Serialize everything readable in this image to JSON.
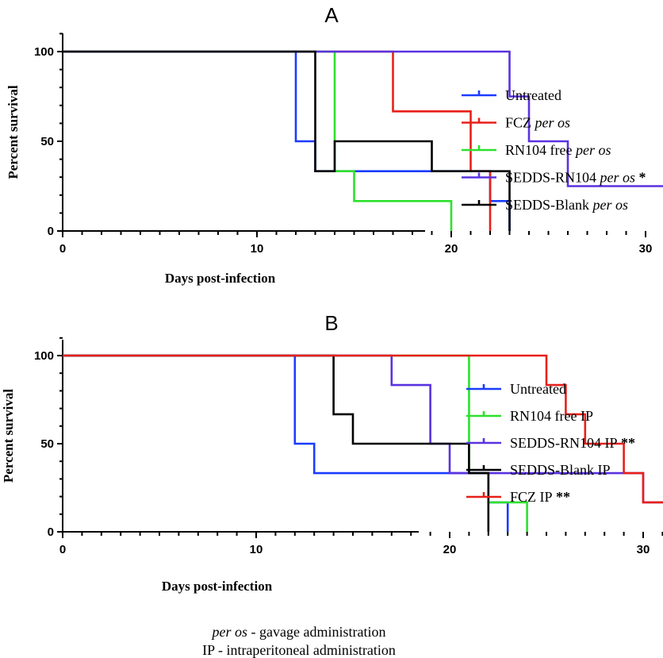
{
  "chart_data": [
    {
      "type": "line",
      "panel": "A",
      "xlabel": "Days post-infection",
      "ylabel": "Percent survival",
      "xlim": [
        0,
        37
      ],
      "ylim": [
        0,
        110
      ],
      "xticks": [
        0,
        10,
        20,
        30
      ],
      "yticks": [
        0,
        50,
        100
      ],
      "legend_position": "right",
      "series": [
        {
          "name": "Untreated",
          "name_main": "Untreated",
          "name_italic": "",
          "name_suffix": "",
          "color": "#1a3cff",
          "x": [
            0,
            12,
            12,
            13,
            13,
            22,
            22,
            23,
            23
          ],
          "y": [
            100,
            100,
            50,
            50,
            33.3,
            33.3,
            16.7,
            16.7,
            0
          ]
        },
        {
          "name": "FCZ per os",
          "name_main": "FCZ ",
          "name_italic": "per os",
          "name_suffix": "",
          "color": "#e8201a",
          "x": [
            0,
            17,
            17,
            21,
            21,
            22,
            22
          ],
          "y": [
            100,
            100,
            66.7,
            66.7,
            33.3,
            33.3,
            0
          ]
        },
        {
          "name": "RN104 free per os",
          "name_main": "RN104 free ",
          "name_italic": "per os",
          "name_suffix": "",
          "color": "#2ee02e",
          "x": [
            0,
            14,
            14,
            15,
            15,
            20,
            20
          ],
          "y": [
            100,
            100,
            33.3,
            33.3,
            16.7,
            16.7,
            0
          ]
        },
        {
          "name": "SEDDS-RN104 per os *",
          "name_main": "SEDDS-RN104 ",
          "name_italic": "per os",
          "name_suffix": " *",
          "color": "#5a32e0",
          "x": [
            0,
            23,
            23,
            24,
            24,
            26,
            26,
            33,
            33
          ],
          "y": [
            100,
            100,
            75,
            75,
            50,
            50,
            25,
            25,
            0
          ]
        },
        {
          "name": "SEDDS-Blank per os",
          "name_main": "SEDDS-Blank ",
          "name_italic": "per os",
          "name_suffix": "",
          "color": "#000000",
          "x": [
            0,
            13,
            13,
            14,
            14,
            19,
            19,
            23,
            23
          ],
          "y": [
            100,
            100,
            33.3,
            33.3,
            50,
            50,
            33.3,
            33.3,
            0
          ]
        }
      ]
    },
    {
      "type": "line",
      "panel": "B",
      "xlabel": "Days post-infection",
      "ylabel": "Percent survival",
      "xlim": [
        0,
        37
      ],
      "ylim": [
        0,
        110
      ],
      "xticks": [
        0,
        10,
        20,
        30
      ],
      "yticks": [
        0,
        50,
        100
      ],
      "legend_position": "right",
      "series": [
        {
          "name": "Untreated",
          "name_main": "Untreated",
          "name_italic": "",
          "name_suffix": "",
          "color": "#1a3cff",
          "x": [
            0,
            12,
            12,
            13,
            13,
            22,
            22,
            23,
            23
          ],
          "y": [
            100,
            100,
            50,
            50,
            33.3,
            33.3,
            16.7,
            16.7,
            0
          ]
        },
        {
          "name": "RN104 free IP",
          "name_main": "RN104 free IP",
          "name_italic": "",
          "name_suffix": "",
          "color": "#2ee02e",
          "x": [
            0,
            21,
            21,
            22,
            22,
            24,
            24
          ],
          "y": [
            100,
            100,
            33.3,
            33.3,
            16.7,
            16.7,
            0
          ]
        },
        {
          "name": "SEDDS-RN104 IP **",
          "name_main": "SEDDS-RN104 IP",
          "name_italic": "",
          "name_suffix": " **",
          "color": "#5a32e0",
          "x": [
            0,
            17,
            17,
            19,
            19,
            20,
            20,
            30,
            30,
            33,
            33
          ],
          "y": [
            100,
            100,
            83.3,
            83.3,
            50,
            50,
            33.3,
            33.3,
            16.7,
            16.7,
            0
          ]
        },
        {
          "name": "SEDDS-Blank IP",
          "name_main": "SEDDS-Blank IP",
          "name_italic": "",
          "name_suffix": "",
          "color": "#000000",
          "x": [
            0,
            14,
            14,
            15,
            15,
            21,
            21,
            22,
            22
          ],
          "y": [
            100,
            100,
            66.7,
            66.7,
            50,
            50,
            33.3,
            33.3,
            0
          ]
        },
        {
          "name": "FCZ IP **",
          "name_main": "FCZ IP",
          "name_italic": "",
          "name_suffix": " **",
          "color": "#e8201a",
          "x": [
            0,
            25,
            25,
            26,
            26,
            27,
            27,
            29,
            29,
            30,
            30,
            32,
            32
          ],
          "y": [
            100,
            100,
            83.3,
            83.3,
            66.7,
            66.7,
            50,
            50,
            33.3,
            33.3,
            16.7,
            16.7,
            0
          ]
        }
      ]
    }
  ],
  "footnotes": [
    {
      "italic": "per os",
      "text": " - gavage administration"
    },
    {
      "italic": "",
      "text": "IP - intraperitoneal administration"
    }
  ]
}
